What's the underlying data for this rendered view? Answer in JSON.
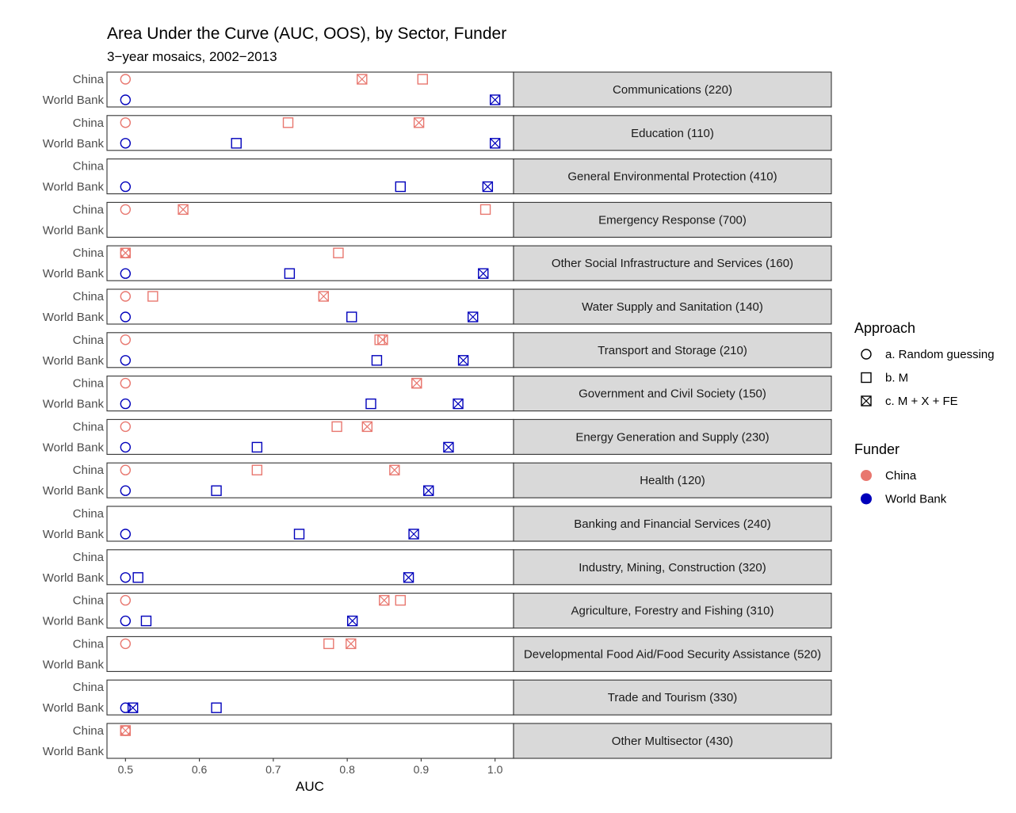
{
  "chart_data": {
    "type": "scatter",
    "title": "Area Under the Curve (AUC, OOS), by Sector, Funder",
    "subtitle": "3−year mosaics, 2002−2013",
    "xlabel": "AUC",
    "ylabel": "",
    "xlim": [
      0.475,
      1.025
    ],
    "x_ticks": [
      0.5,
      0.6,
      0.7,
      0.8,
      0.9,
      1.0
    ],
    "x_tick_labels": [
      "0.5",
      "0.6",
      "0.7",
      "0.8",
      "0.9",
      "1.0"
    ],
    "row_labels": [
      "China",
      "World Bank"
    ],
    "funder_colors": {
      "China": "#e8776f",
      "World Bank": "#0000bb"
    },
    "legend": {
      "approach": {
        "title": "Approach",
        "items": [
          {
            "key": "random",
            "label": "a. Random guessing",
            "shape": "circle"
          },
          {
            "key": "m",
            "label": "b. M",
            "shape": "square"
          },
          {
            "key": "mxfe",
            "label": "c. M + X + FE",
            "shape": "boxx"
          }
        ]
      },
      "funder": {
        "title": "Funder",
        "items": [
          {
            "label": "China",
            "color": "#e8776f"
          },
          {
            "label": "World Bank",
            "color": "#0000bb"
          }
        ]
      }
    },
    "panels": [
      {
        "label": "Communications (220)",
        "China": {
          "random": 0.5,
          "m": 0.902,
          "mxfe": 0.82
        },
        "World Bank": {
          "random": 0.5,
          "m": null,
          "mxfe": 1.0
        }
      },
      {
        "label": "Education (110)",
        "China": {
          "random": 0.5,
          "m": 0.72,
          "mxfe": 0.897
        },
        "World Bank": {
          "random": 0.5,
          "m": 0.65,
          "mxfe": 1.0
        }
      },
      {
        "label": "General Environmental Protection (410)",
        "China": {
          "random": null,
          "m": null,
          "mxfe": null
        },
        "World Bank": {
          "random": 0.5,
          "m": 0.872,
          "mxfe": 0.99
        }
      },
      {
        "label": "Emergency Response (700)",
        "China": {
          "random": 0.5,
          "m": 0.987,
          "mxfe": 0.578
        },
        "World Bank": {
          "random": null,
          "m": null,
          "mxfe": null
        }
      },
      {
        "label": "Other Social Infrastructure and Services (160)",
        "China": {
          "random": 0.5,
          "m": 0.788,
          "mxfe": 0.5
        },
        "World Bank": {
          "random": 0.5,
          "m": 0.722,
          "mxfe": 0.984
        }
      },
      {
        "label": "Water Supply and Sanitation (140)",
        "China": {
          "random": 0.5,
          "m": 0.537,
          "mxfe": 0.768
        },
        "World Bank": {
          "random": 0.5,
          "m": 0.806,
          "mxfe": 0.97
        }
      },
      {
        "label": "Transport and Storage (210)",
        "China": {
          "random": 0.5,
          "m": 0.844,
          "mxfe": 0.848
        },
        "World Bank": {
          "random": 0.5,
          "m": 0.84,
          "mxfe": 0.957
        }
      },
      {
        "label": "Government and Civil Society (150)",
        "China": {
          "random": 0.5,
          "m": 0.894,
          "mxfe": 0.894
        },
        "World Bank": {
          "random": 0.5,
          "m": 0.832,
          "mxfe": 0.95
        }
      },
      {
        "label": "Energy Generation and Supply (230)",
        "China": {
          "random": 0.5,
          "m": 0.786,
          "mxfe": 0.827
        },
        "World Bank": {
          "random": 0.5,
          "m": 0.678,
          "mxfe": 0.937
        }
      },
      {
        "label": "Health (120)",
        "China": {
          "random": 0.5,
          "m": 0.678,
          "mxfe": 0.864
        },
        "World Bank": {
          "random": 0.5,
          "m": 0.623,
          "mxfe": 0.91
        }
      },
      {
        "label": "Banking and Financial Services (240)",
        "China": {
          "random": null,
          "m": null,
          "mxfe": null
        },
        "World Bank": {
          "random": 0.5,
          "m": 0.735,
          "mxfe": 0.89
        }
      },
      {
        "label": "Industry, Mining, Construction (320)",
        "China": {
          "random": null,
          "m": null,
          "mxfe": null
        },
        "World Bank": {
          "random": 0.5,
          "m": 0.517,
          "mxfe": 0.883
        }
      },
      {
        "label": "Agriculture, Forestry and Fishing (310)",
        "China": {
          "random": 0.5,
          "m": 0.872,
          "mxfe": 0.85
        },
        "World Bank": {
          "random": 0.5,
          "m": 0.528,
          "mxfe": 0.807
        }
      },
      {
        "label": "Developmental Food Aid/Food Security Assistance (520)",
        "China": {
          "random": 0.5,
          "m": 0.775,
          "mxfe": 0.805
        },
        "World Bank": {
          "random": null,
          "m": null,
          "mxfe": null
        }
      },
      {
        "label": "Trade and Tourism (330)",
        "China": {
          "random": null,
          "m": null,
          "mxfe": null
        },
        "World Bank": {
          "random": 0.5,
          "m": 0.623,
          "mxfe": 0.51
        }
      },
      {
        "label": "Other Multisector (430)",
        "China": {
          "random": 0.5,
          "m": 0.5,
          "mxfe": 0.5
        },
        "World Bank": {
          "random": null,
          "m": null,
          "mxfe": null
        }
      }
    ]
  }
}
